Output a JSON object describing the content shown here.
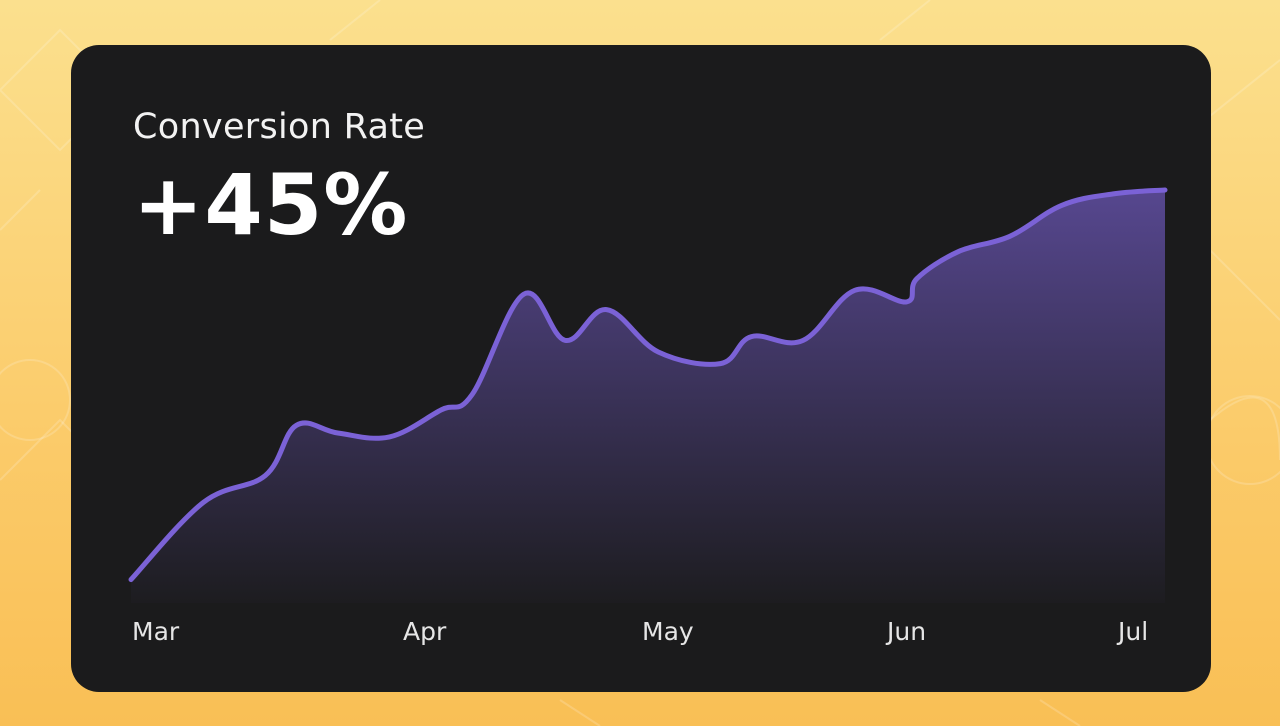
{
  "card": {
    "title": "Conversion Rate",
    "value": "+45%"
  },
  "chart_data": {
    "type": "area",
    "title": "Conversion Rate",
    "xlabel": "",
    "ylabel": "",
    "x_ticks": [
      "Mar",
      "Apr",
      "May",
      "Jun",
      "Jul"
    ],
    "x": [
      0,
      0.07,
      0.13,
      0.16,
      0.2,
      0.25,
      0.3,
      0.33,
      0.38,
      0.42,
      0.46,
      0.51,
      0.57,
      0.6,
      0.65,
      0.7,
      0.75,
      0.76,
      0.8,
      0.85,
      0.9,
      0.95,
      1.0
    ],
    "values": [
      0,
      20,
      27,
      40,
      38,
      37,
      44,
      48,
      74,
      62,
      70,
      59,
      56,
      63,
      62,
      75,
      72,
      78,
      85,
      89,
      97,
      100,
      101
    ],
    "ylim": [
      -4,
      108
    ],
    "grid": false,
    "colors": {
      "line": "#7b62d6",
      "fill": "#7b62d6"
    }
  },
  "colors": {
    "background": "#fbcf72",
    "card": "#1b1b1c",
    "accent": "#7b62d6"
  }
}
